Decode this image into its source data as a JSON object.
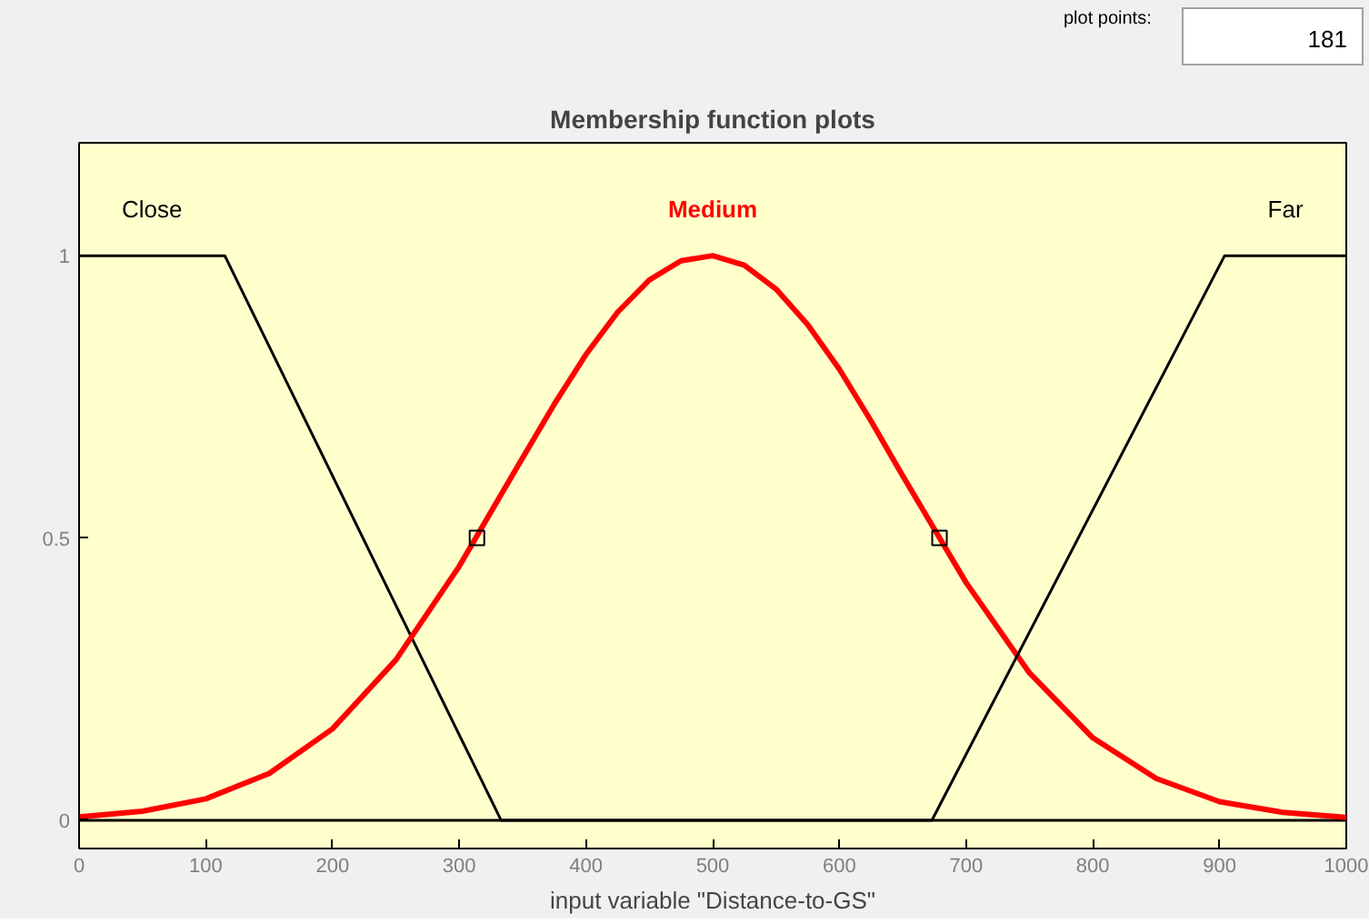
{
  "chart_data": {
    "type": "line",
    "title": "Membership function plots",
    "xlabel": "input variable \"Distance-to-GS\"",
    "xlim": [
      0,
      1000
    ],
    "ylim": [
      -0.05,
      1.2
    ],
    "xticks": [
      0,
      100,
      200,
      300,
      400,
      500,
      600,
      700,
      800,
      900,
      1000
    ],
    "yticks": [
      0,
      0.5,
      1
    ],
    "grid": false,
    "marker": "none",
    "line_style": "solid",
    "annotations": [
      "plot points:",
      "181"
    ],
    "series": [
      {
        "name": "Close",
        "color": "#000000",
        "x": [
          0,
          115,
          333,
          1000
        ],
        "values": [
          1,
          1,
          0,
          0
        ]
      },
      {
        "name": "Medium",
        "color": "#ff0000",
        "x": [
          0,
          50,
          100,
          150,
          200,
          250,
          300,
          350,
          375,
          400,
          425,
          450,
          475,
          500,
          525,
          550,
          575,
          600,
          625,
          650,
          700,
          750,
          800,
          850,
          900,
          950,
          1000
        ],
        "values": [
          0.006,
          0.016,
          0.038,
          0.083,
          0.162,
          0.284,
          0.45,
          0.642,
          0.737,
          0.825,
          0.9,
          0.957,
          0.991,
          1.0,
          0.983,
          0.941,
          0.878,
          0.799,
          0.707,
          0.61,
          0.421,
          0.261,
          0.146,
          0.074,
          0.033,
          0.014,
          0.005
        ]
      },
      {
        "name": "Far",
        "color": "#000000",
        "x": [
          0,
          673,
          904,
          1000
        ],
        "values": [
          0,
          0,
          1,
          1
        ]
      },
      {
        "type": "scatter",
        "marker": "square",
        "color": "#000000",
        "x": [
          314,
          679
        ],
        "values": [
          0.5,
          0.5
        ]
      }
    ]
  }
}
